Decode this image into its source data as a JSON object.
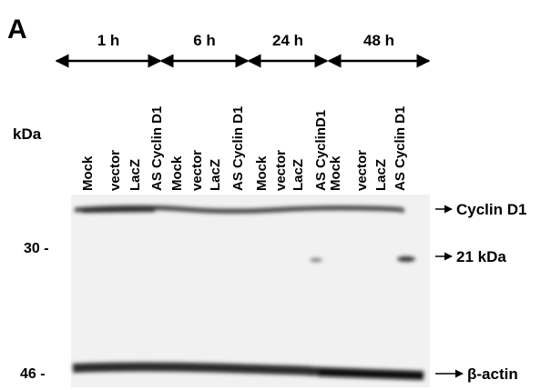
{
  "panel_label": "A",
  "time_points": [
    "1 h",
    "6 h",
    "24 h",
    "48 h"
  ],
  "axis_label": "kDa",
  "lanes": [
    "Mock",
    "vector",
    "LacZ",
    "AS Cyclin D1",
    "Mock",
    "vector",
    "LacZ",
    "AS Cyclin D1",
    "Mock",
    "vector",
    "LacZ",
    "AS CyclinD1",
    "Mock",
    "vector",
    "LacZ",
    "AS Cyclin D1"
  ],
  "markers": [
    "30 -",
    "46 -"
  ],
  "band_labels": [
    "Cyclin D1",
    "21 kDa",
    "β-actin"
  ]
}
